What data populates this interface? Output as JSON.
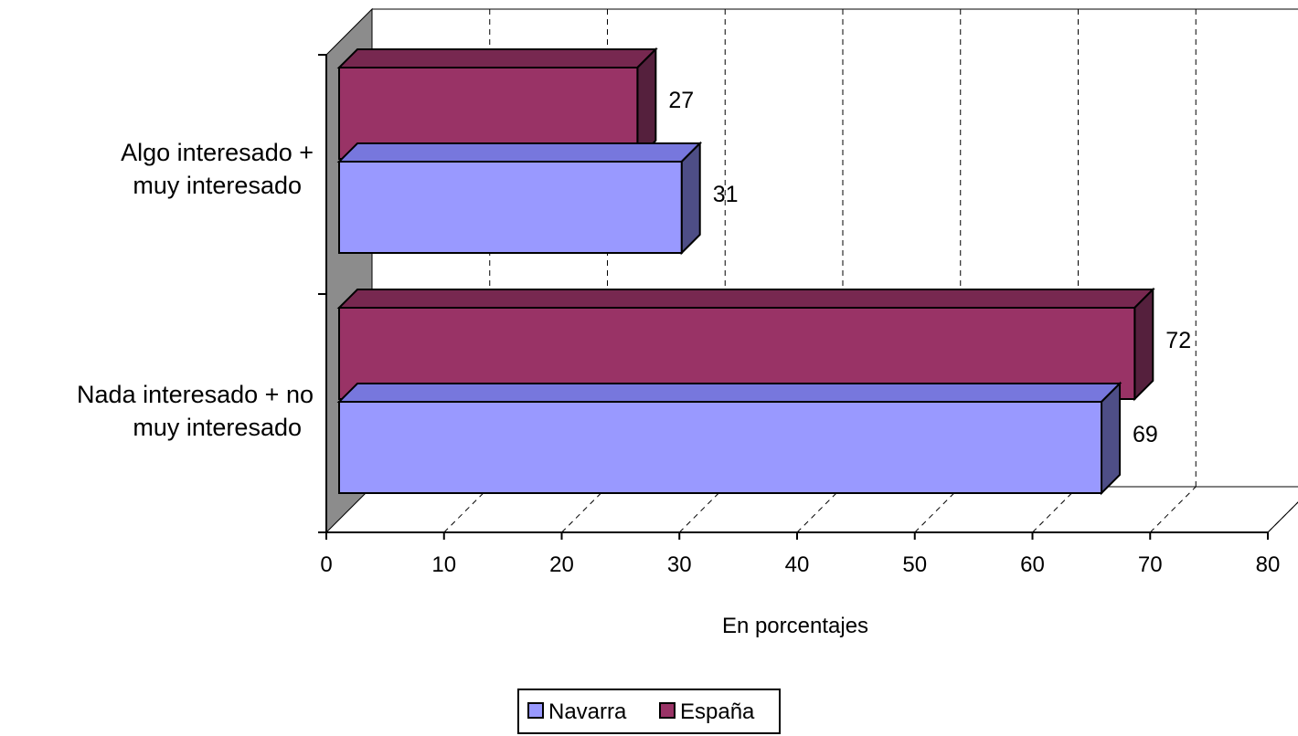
{
  "chart_data": {
    "type": "bar",
    "orientation": "horizontal",
    "style": "3d",
    "categories": [
      "Algo interesado +\nmuy interesado",
      "Nada interesado + no\nmuy interesado"
    ],
    "series": [
      {
        "name": "Navarra",
        "values": [
          31,
          69
        ],
        "color": "#9999FF",
        "top_color": "#7777DD",
        "side_color": "#4E4E86"
      },
      {
        "name": "España",
        "values": [
          27,
          72
        ],
        "color": "#993366",
        "top_color": "#772850",
        "side_color": "#55203D"
      }
    ],
    "xlabel": "En porcentajes",
    "xlim": [
      0,
      80
    ],
    "xticks": [
      0,
      10,
      20,
      30,
      40,
      50,
      60,
      70,
      80
    ],
    "grid": "vertical dashed",
    "legend_position": "bottom",
    "data_labels": true
  }
}
